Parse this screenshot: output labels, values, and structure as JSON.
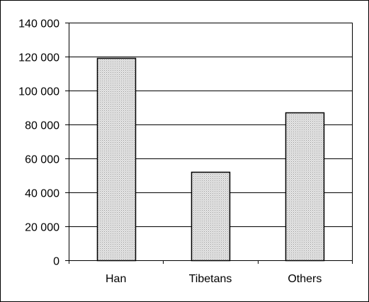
{
  "chart_data": {
    "type": "bar",
    "categories": [
      "Han",
      "Tibetans",
      "Others"
    ],
    "values": [
      119000,
      52000,
      87000
    ],
    "ylim": [
      0,
      140000
    ],
    "ytick_values": [
      0,
      20000,
      40000,
      60000,
      80000,
      100000,
      120000,
      140000
    ],
    "ytick_labels": [
      "0",
      "20 000",
      "40 000",
      "60 000",
      "80 000",
      "100 000",
      "120 000",
      "140 000"
    ],
    "grid": true,
    "legend": "none",
    "title": "",
    "xlabel": "",
    "ylabel": ""
  },
  "colors": {
    "bar_fill": "#d9d9d9",
    "bar_stroke": "#000000",
    "grid": "#000000",
    "axis": "#000000"
  }
}
